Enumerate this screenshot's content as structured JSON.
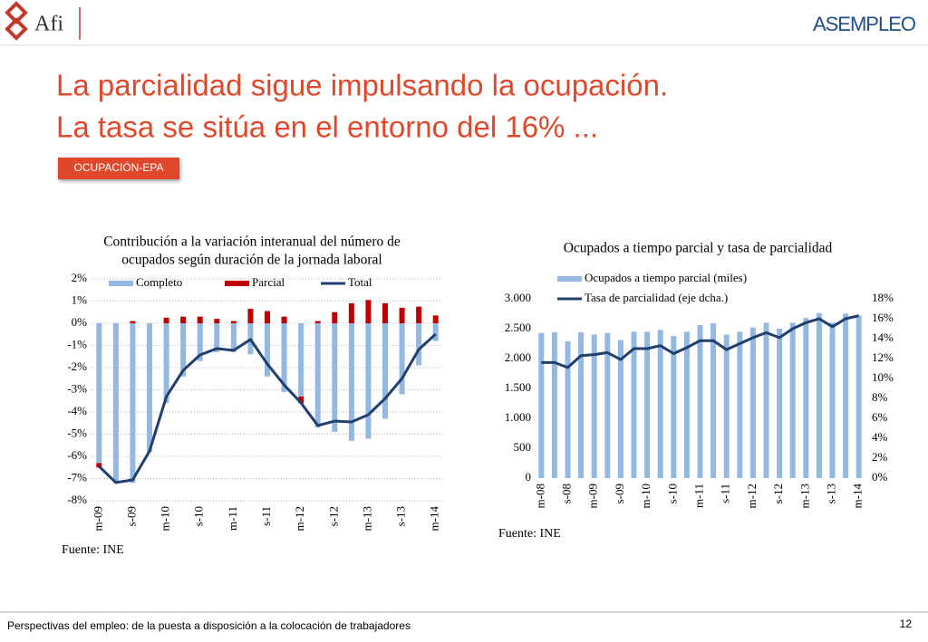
{
  "header": {
    "logo_left": "Afi",
    "logo_right": "ASEMPLEO",
    "title_lines": [
      "La parcialidad sigue impulsando la ocupación.",
      "La tasa se sitúa en el entorno del 16% ..."
    ],
    "tag": "OCUPACIÓN-EPA"
  },
  "footer": {
    "text": "Perspectivas del empleo: de la puesta a disposición a la colocación de trabajadores",
    "page": "12"
  },
  "chart_data": [
    {
      "type": "bar",
      "stacked": true,
      "grid": true,
      "title": [
        "Contribución a la variación interanual del número de",
        "ocupados según duración de la jornada laboral"
      ],
      "categories": [
        "m-09",
        null,
        "s-09",
        null,
        "m-10",
        null,
        "s-10",
        null,
        "m-11",
        null,
        "s-11",
        null,
        "m-12",
        null,
        "s-12",
        null,
        "m-13",
        null,
        "s-13",
        null,
        "m-14"
      ],
      "series": [
        {
          "name": "Completo",
          "kind": "bar",
          "color": "#95b8e3",
          "values": [
            -6.3,
            -7.2,
            -7.2,
            -5.8,
            -3.6,
            -2.4,
            -1.7,
            -1.3,
            -1.3,
            -1.4,
            -2.4,
            -3.1,
            -3.3,
            -4.7,
            -4.9,
            -5.3,
            -5.2,
            -4.3,
            -3.2,
            -1.9,
            -0.8
          ]
        },
        {
          "name": "Parcial",
          "kind": "bar",
          "color": "#c00000",
          "values": [
            -0.2,
            0,
            0.1,
            0,
            0.25,
            0.3,
            0.3,
            0.2,
            0.1,
            0.65,
            0.55,
            0.3,
            -0.3,
            0.1,
            0.5,
            0.9,
            1.05,
            0.9,
            0.7,
            0.75,
            0.35
          ]
        },
        {
          "name": "Total",
          "kind": "line",
          "color": "#1f3f6e",
          "values": [
            -6.45,
            -7.18,
            -7.06,
            -5.76,
            -3.31,
            -2.12,
            -1.43,
            -1.14,
            -1.22,
            -0.73,
            -1.84,
            -2.78,
            -3.59,
            -4.61,
            -4.41,
            -4.45,
            -4.12,
            -3.39,
            -2.49,
            -1.18,
            -0.49
          ]
        }
      ],
      "ylim": [
        -8,
        2
      ],
      "yticks": [
        {
          "value": 2,
          "label": "2%"
        },
        {
          "value": 1,
          "label": "1%"
        },
        {
          "value": 0,
          "label": "0%"
        },
        {
          "value": -1,
          "label": "-1%"
        },
        {
          "value": -2,
          "label": "-2%"
        },
        {
          "value": -3,
          "label": "-3%"
        },
        {
          "value": -4,
          "label": "-4%"
        },
        {
          "value": -5,
          "label": "-5%"
        },
        {
          "value": -6,
          "label": "-6%"
        },
        {
          "value": -7,
          "label": "-7%"
        },
        {
          "value": -8,
          "label": "-8%"
        }
      ],
      "source": "Fuente: INE"
    },
    {
      "type": "bar",
      "stacked": false,
      "grid": false,
      "title": [
        "Ocupados a tiempo parcial y tasa de parcialidad"
      ],
      "categories": [
        "m-08",
        null,
        "s-08",
        null,
        "m-09",
        null,
        "s-09",
        null,
        "m-10",
        null,
        "s-10",
        null,
        "m-11",
        null,
        "s-11",
        null,
        "m-12",
        null,
        "s-12",
        null,
        "m-13",
        null,
        "s-13",
        null,
        "m-14"
      ],
      "series": [
        {
          "name": "Ocupados a tiempo parcial (miles)",
          "kind": "bar",
          "color": "#95b8e3",
          "values": [
            2430,
            2440,
            2290,
            2440,
            2400,
            2430,
            2310,
            2450,
            2450,
            2480,
            2380,
            2450,
            2560,
            2590,
            2400,
            2450,
            2520,
            2600,
            2500,
            2600,
            2680,
            2760,
            2600,
            2750,
            2720
          ]
        },
        {
          "name": "Tasa de parcialidad (eje dcha.)",
          "kind": "line",
          "axis": "y2",
          "color": "#1f3f6e",
          "values": [
            11.6,
            11.6,
            11.1,
            12.3,
            12.4,
            12.6,
            11.9,
            13.0,
            13.0,
            13.3,
            12.5,
            13.1,
            13.8,
            13.8,
            12.9,
            13.5,
            14.1,
            14.6,
            14.1,
            15.0,
            15.6,
            16.0,
            15.2,
            16.0,
            16.3
          ]
        }
      ],
      "ylim": [
        0,
        3000
      ],
      "yticks": [
        0,
        500,
        {
          "value": 1000,
          "label": "1.000"
        },
        {
          "value": 1500,
          "label": "1.500"
        },
        {
          "value": 2000,
          "label": "2.000"
        },
        {
          "value": 2500,
          "label": "2.500"
        },
        {
          "value": 3000,
          "label": "3.000"
        }
      ],
      "y2lim": [
        0,
        18
      ],
      "y2ticks": [
        {
          "value": 0,
          "label": "0%"
        },
        {
          "value": 2,
          "label": "2%"
        },
        {
          "value": 4,
          "label": "4%"
        },
        {
          "value": 6,
          "label": "6%"
        },
        {
          "value": 8,
          "label": "8%"
        },
        {
          "value": 10,
          "label": "10%"
        },
        {
          "value": 12,
          "label": "12%"
        },
        {
          "value": 14,
          "label": "14%"
        },
        {
          "value": 16,
          "label": "16%"
        },
        {
          "value": 18,
          "label": "18%"
        }
      ],
      "source": "Fuente: INE"
    }
  ]
}
